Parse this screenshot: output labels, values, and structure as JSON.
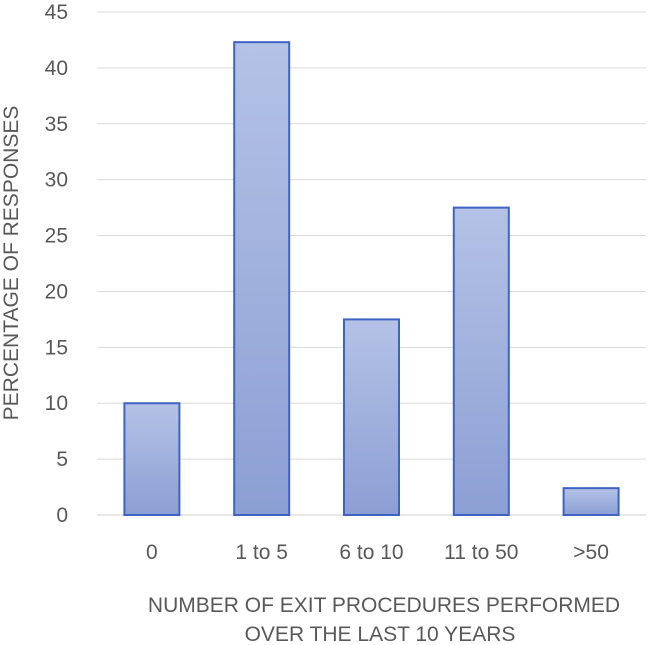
{
  "chart_data": {
    "type": "bar",
    "categories": [
      "0",
      "1 to 5",
      "6 to 10",
      "11 to 50",
      ">50"
    ],
    "values": [
      10,
      42.3,
      17.5,
      27.5,
      2.4
    ],
    "ylim": [
      0,
      45
    ],
    "yticks": [
      0,
      5,
      10,
      15,
      20,
      25,
      30,
      35,
      40,
      45
    ],
    "ylabel": "PERCENTAGE OF RESPONSES",
    "xlabel_lines": [
      "NUMBER OF EXIT PROCEDURES PERFORMED",
      "OVER THE LAST 10 YEARS"
    ],
    "grid": true,
    "legend": "none"
  },
  "colors": {
    "bar_fill_top": "#b4c2e6",
    "bar_fill_bottom": "#8c9fd4",
    "bar_stroke": "#3f63c2",
    "grid": "#d9d9d9",
    "text": "#595959"
  }
}
